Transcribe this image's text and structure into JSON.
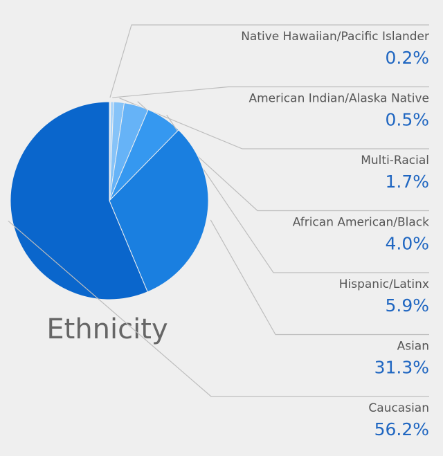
{
  "chart_data": {
    "type": "pie",
    "title": "Ethnicity",
    "categories": [
      "Native Hawaiian/Pacific Islander",
      "American Indian/Alaska Native",
      "Multi-Racial",
      "African American/Black",
      "Hispanic/Latinx",
      "Asian",
      "Caucasian"
    ],
    "values": [
      0.2,
      0.5,
      1.7,
      4.0,
      5.9,
      31.3,
      56.2
    ],
    "value_labels": [
      "0.2%",
      "0.5%",
      "1.7%",
      "4.0%",
      "5.9%",
      "31.3%",
      "56.2%"
    ],
    "colors": [
      "#d6ebfc",
      "#a9d4fa",
      "#86c3f8",
      "#66b3f7",
      "#3598f0",
      "#1a7fe0",
      "#0a66cc"
    ]
  }
}
